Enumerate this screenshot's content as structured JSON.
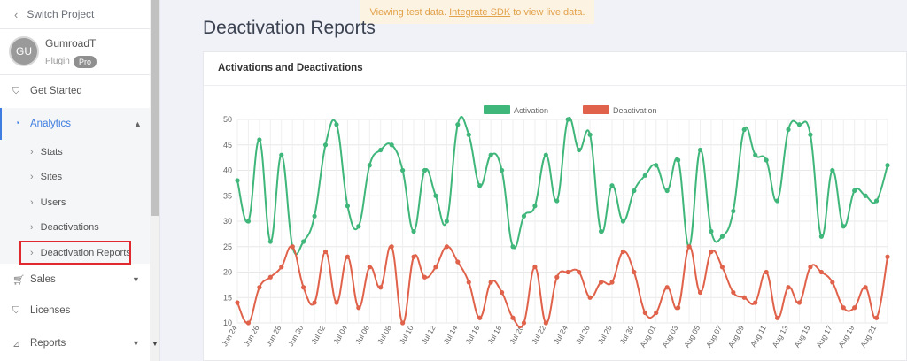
{
  "sidebar": {
    "switch_label": "Switch Project",
    "avatar_initials": "GU",
    "project_name": "GumroadT",
    "project_type": "Plugin",
    "plan_badge": "Pro",
    "get_started": "Get Started",
    "analytics": "Analytics",
    "analytics_items": [
      "Stats",
      "Sites",
      "Users",
      "Deactivations",
      "Deactivation Reports"
    ],
    "sales": "Sales",
    "licenses": "Licenses",
    "reports": "Reports"
  },
  "notice": {
    "prefix": "Viewing test data.",
    "link": "Integrate SDK",
    "suffix": "to view live data."
  },
  "page_title": "Deactivation Reports",
  "card_title": "Activations and Deactivations",
  "colors": {
    "activation": "#3fb67a",
    "deactivation": "#e0624a",
    "accent": "#3f7ee0",
    "highlight": "#e0282e"
  },
  "chart_data": {
    "type": "line",
    "title": "Activations and Deactivations",
    "ylim": [
      10,
      50
    ],
    "yticks": [
      10,
      15,
      20,
      25,
      30,
      35,
      40,
      45,
      50
    ],
    "legend_position": "top-center",
    "grid": true,
    "x": [
      "Jun 24",
      "Jun 25",
      "Jun 26",
      "Jun 27",
      "Jun 28",
      "Jun 29",
      "Jun 30",
      "Jul 01",
      "Jul 02",
      "Jul 03",
      "Jul 04",
      "Jul 05",
      "Jul 06",
      "Jul 07",
      "Jul 08",
      "Jul 09",
      "Jul 10",
      "Jul 11",
      "Jul 12",
      "Jul 13",
      "Jul 14",
      "Jul 15",
      "Jul 16",
      "Jul 17",
      "Jul 18",
      "Jul 19",
      "Jul 20",
      "Jul 21",
      "Jul 22",
      "Jul 23",
      "Jul 24",
      "Jul 25",
      "Jul 26",
      "Jul 27",
      "Jul 28",
      "Jul 29",
      "Jul 30",
      "Jul 31",
      "Aug 01",
      "Aug 02",
      "Aug 03",
      "Aug 04",
      "Aug 05",
      "Aug 06",
      "Aug 07",
      "Aug 08",
      "Aug 09",
      "Aug 10",
      "Aug 11",
      "Aug 12",
      "Aug 13",
      "Aug 14",
      "Aug 15",
      "Aug 16",
      "Aug 17",
      "Aug 18",
      "Aug 19",
      "Aug 20",
      "Aug 21",
      "Aug 22"
    ],
    "tick_labels": [
      "Jun 24",
      "Jun 26",
      "Jun 28",
      "Jun 30",
      "Jul 02",
      "Jul 04",
      "Jul 06",
      "Jul 08",
      "Jul 10",
      "Jul 12",
      "Jul 14",
      "Jul 16",
      "Jul 18",
      "Jul 20",
      "Jul 22",
      "Jul 24",
      "Jul 26",
      "Jul 28",
      "Jul 30",
      "Aug 01",
      "Aug 03",
      "Aug 05",
      "Aug 07",
      "Aug 09",
      "Aug 11",
      "Aug 13",
      "Aug 15",
      "Aug 17",
      "Aug 19",
      "Aug 21"
    ],
    "series": [
      {
        "name": "Activation",
        "values": [
          38,
          30,
          46,
          26,
          43,
          25,
          26,
          31,
          45,
          49,
          33,
          29,
          41,
          44,
          45,
          40,
          28,
          40,
          35,
          30,
          49,
          47,
          37,
          43,
          40,
          25,
          31,
          33,
          43,
          34,
          50,
          44,
          47,
          28,
          37,
          30,
          36,
          39,
          41,
          36,
          42,
          25,
          44,
          28,
          27,
          32,
          48,
          43,
          42,
          34,
          48,
          49,
          47,
          27,
          40,
          29,
          36,
          35,
          34,
          41
        ]
      },
      {
        "name": "Deactivation",
        "values": [
          14,
          10,
          17,
          19,
          21,
          25,
          17,
          14,
          24,
          14,
          23,
          13,
          21,
          17,
          25,
          10,
          23,
          19,
          21,
          25,
          22,
          18,
          11,
          18,
          16,
          11,
          10,
          21,
          10,
          19,
          20,
          20,
          15,
          18,
          18,
          24,
          20,
          12,
          12,
          17,
          13,
          25,
          16,
          24,
          21,
          16,
          15,
          14,
          20,
          11,
          17,
          14,
          21,
          20,
          18,
          13,
          13,
          17,
          11,
          23
        ]
      }
    ]
  }
}
